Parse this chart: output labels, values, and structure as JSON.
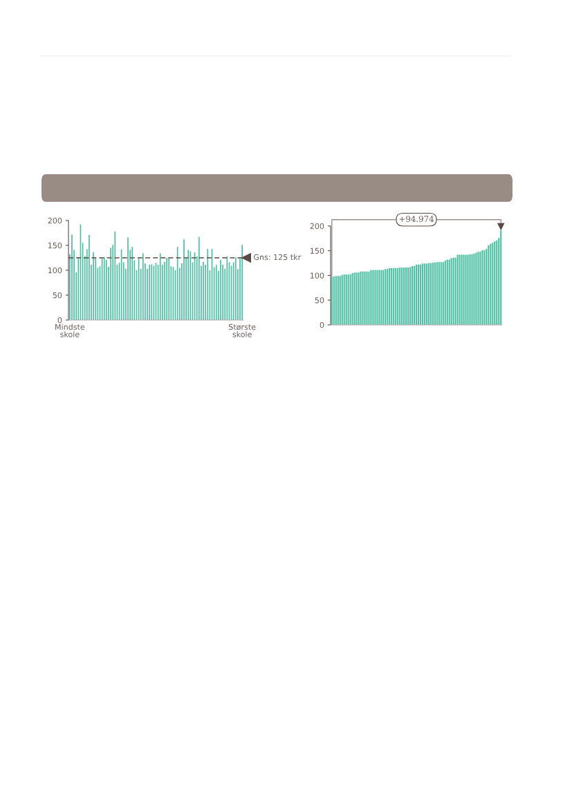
{
  "chart_data": [
    {
      "type": "bar",
      "categories": [
        "Mindste\nskole",
        null,
        null,
        null,
        null,
        null,
        null,
        null,
        null,
        null,
        null,
        null,
        null,
        null,
        null,
        null,
        null,
        null,
        null,
        null,
        null,
        null,
        null,
        null,
        null,
        null,
        null,
        null,
        null,
        null,
        null,
        null,
        null,
        null,
        null,
        null,
        null,
        null,
        null,
        null,
        null,
        null,
        null,
        null,
        null,
        null,
        null,
        null,
        null,
        null,
        null,
        null,
        null,
        null,
        null,
        null,
        null,
        null,
        null,
        null,
        null,
        null,
        null,
        null,
        null,
        null,
        null,
        null,
        null,
        null,
        null,
        null,
        null,
        null,
        null,
        null,
        null,
        null,
        null,
        null,
        "Største\nskole"
      ],
      "values": [
        132,
        172,
        141,
        96,
        126,
        192,
        155,
        128,
        142,
        171,
        111,
        136,
        126,
        105,
        108,
        124,
        126,
        121,
        107,
        145,
        151,
        178,
        111,
        115,
        142,
        116,
        103,
        166,
        141,
        147,
        120,
        100,
        124,
        103,
        134,
        114,
        103,
        111,
        112,
        109,
        115,
        111,
        134,
        111,
        117,
        125,
        125,
        108,
        107,
        100,
        147,
        105,
        114,
        162,
        124,
        141,
        138,
        116,
        136,
        128,
        167,
        109,
        117,
        111,
        143,
        100,
        143,
        106,
        111,
        99,
        121,
        111,
        103,
        128,
        116,
        109,
        116,
        126,
        102,
        124,
        151
      ],
      "color": "#4dbfa3",
      "ylim": [
        0,
        200
      ],
      "yticks": [
        0,
        50,
        100,
        150,
        200
      ],
      "grid": false,
      "ref_lines": [
        {
          "axis": "y",
          "value": 125,
          "label": "Gns: 125 tkr",
          "color": "#5a4a45",
          "line_style": "dashed"
        }
      ]
    },
    {
      "type": "bar",
      "categories": [
        null,
        null,
        null,
        null,
        null,
        null,
        null,
        null,
        null,
        null,
        null,
        null,
        null,
        null,
        null,
        null,
        null,
        null,
        null,
        null,
        null,
        null,
        null,
        null,
        null,
        null,
        null,
        null,
        null,
        null,
        null,
        null,
        null,
        null,
        null,
        null,
        null,
        null,
        null,
        null,
        null,
        null,
        null,
        null,
        null,
        null,
        null,
        null,
        null,
        null,
        null,
        null,
        null,
        null,
        null,
        null,
        null,
        null,
        null,
        null,
        null,
        null,
        null,
        null,
        null,
        null,
        null,
        null,
        null,
        null,
        null,
        null,
        null,
        null,
        null,
        null,
        null,
        null,
        null,
        null,
        null,
        null,
        null
      ],
      "values": [
        96,
        98,
        99,
        99,
        99,
        101,
        102,
        102,
        102,
        102,
        105,
        106,
        106,
        106,
        108,
        108,
        108,
        108,
        108,
        111,
        111,
        111,
        111,
        111,
        111,
        111,
        113,
        113,
        115,
        115,
        115,
        115,
        115,
        116,
        116,
        116,
        116,
        116,
        117,
        119,
        119,
        122,
        122,
        122,
        124,
        124,
        124,
        125,
        125,
        126,
        126,
        127,
        127,
        127,
        127,
        130,
        132,
        132,
        135,
        136,
        136,
        142,
        142,
        142,
        142,
        142,
        142,
        143,
        143,
        144,
        146,
        148,
        148,
        151,
        151,
        154,
        161,
        164,
        166,
        169,
        171,
        176,
        191
      ],
      "color": "#4dbfa3",
      "ylim": [
        0,
        200
      ],
      "yticks": [
        0,
        50,
        100,
        150,
        200
      ],
      "grid": false,
      "annotations": [
        "+94.974"
      ]
    }
  ]
}
